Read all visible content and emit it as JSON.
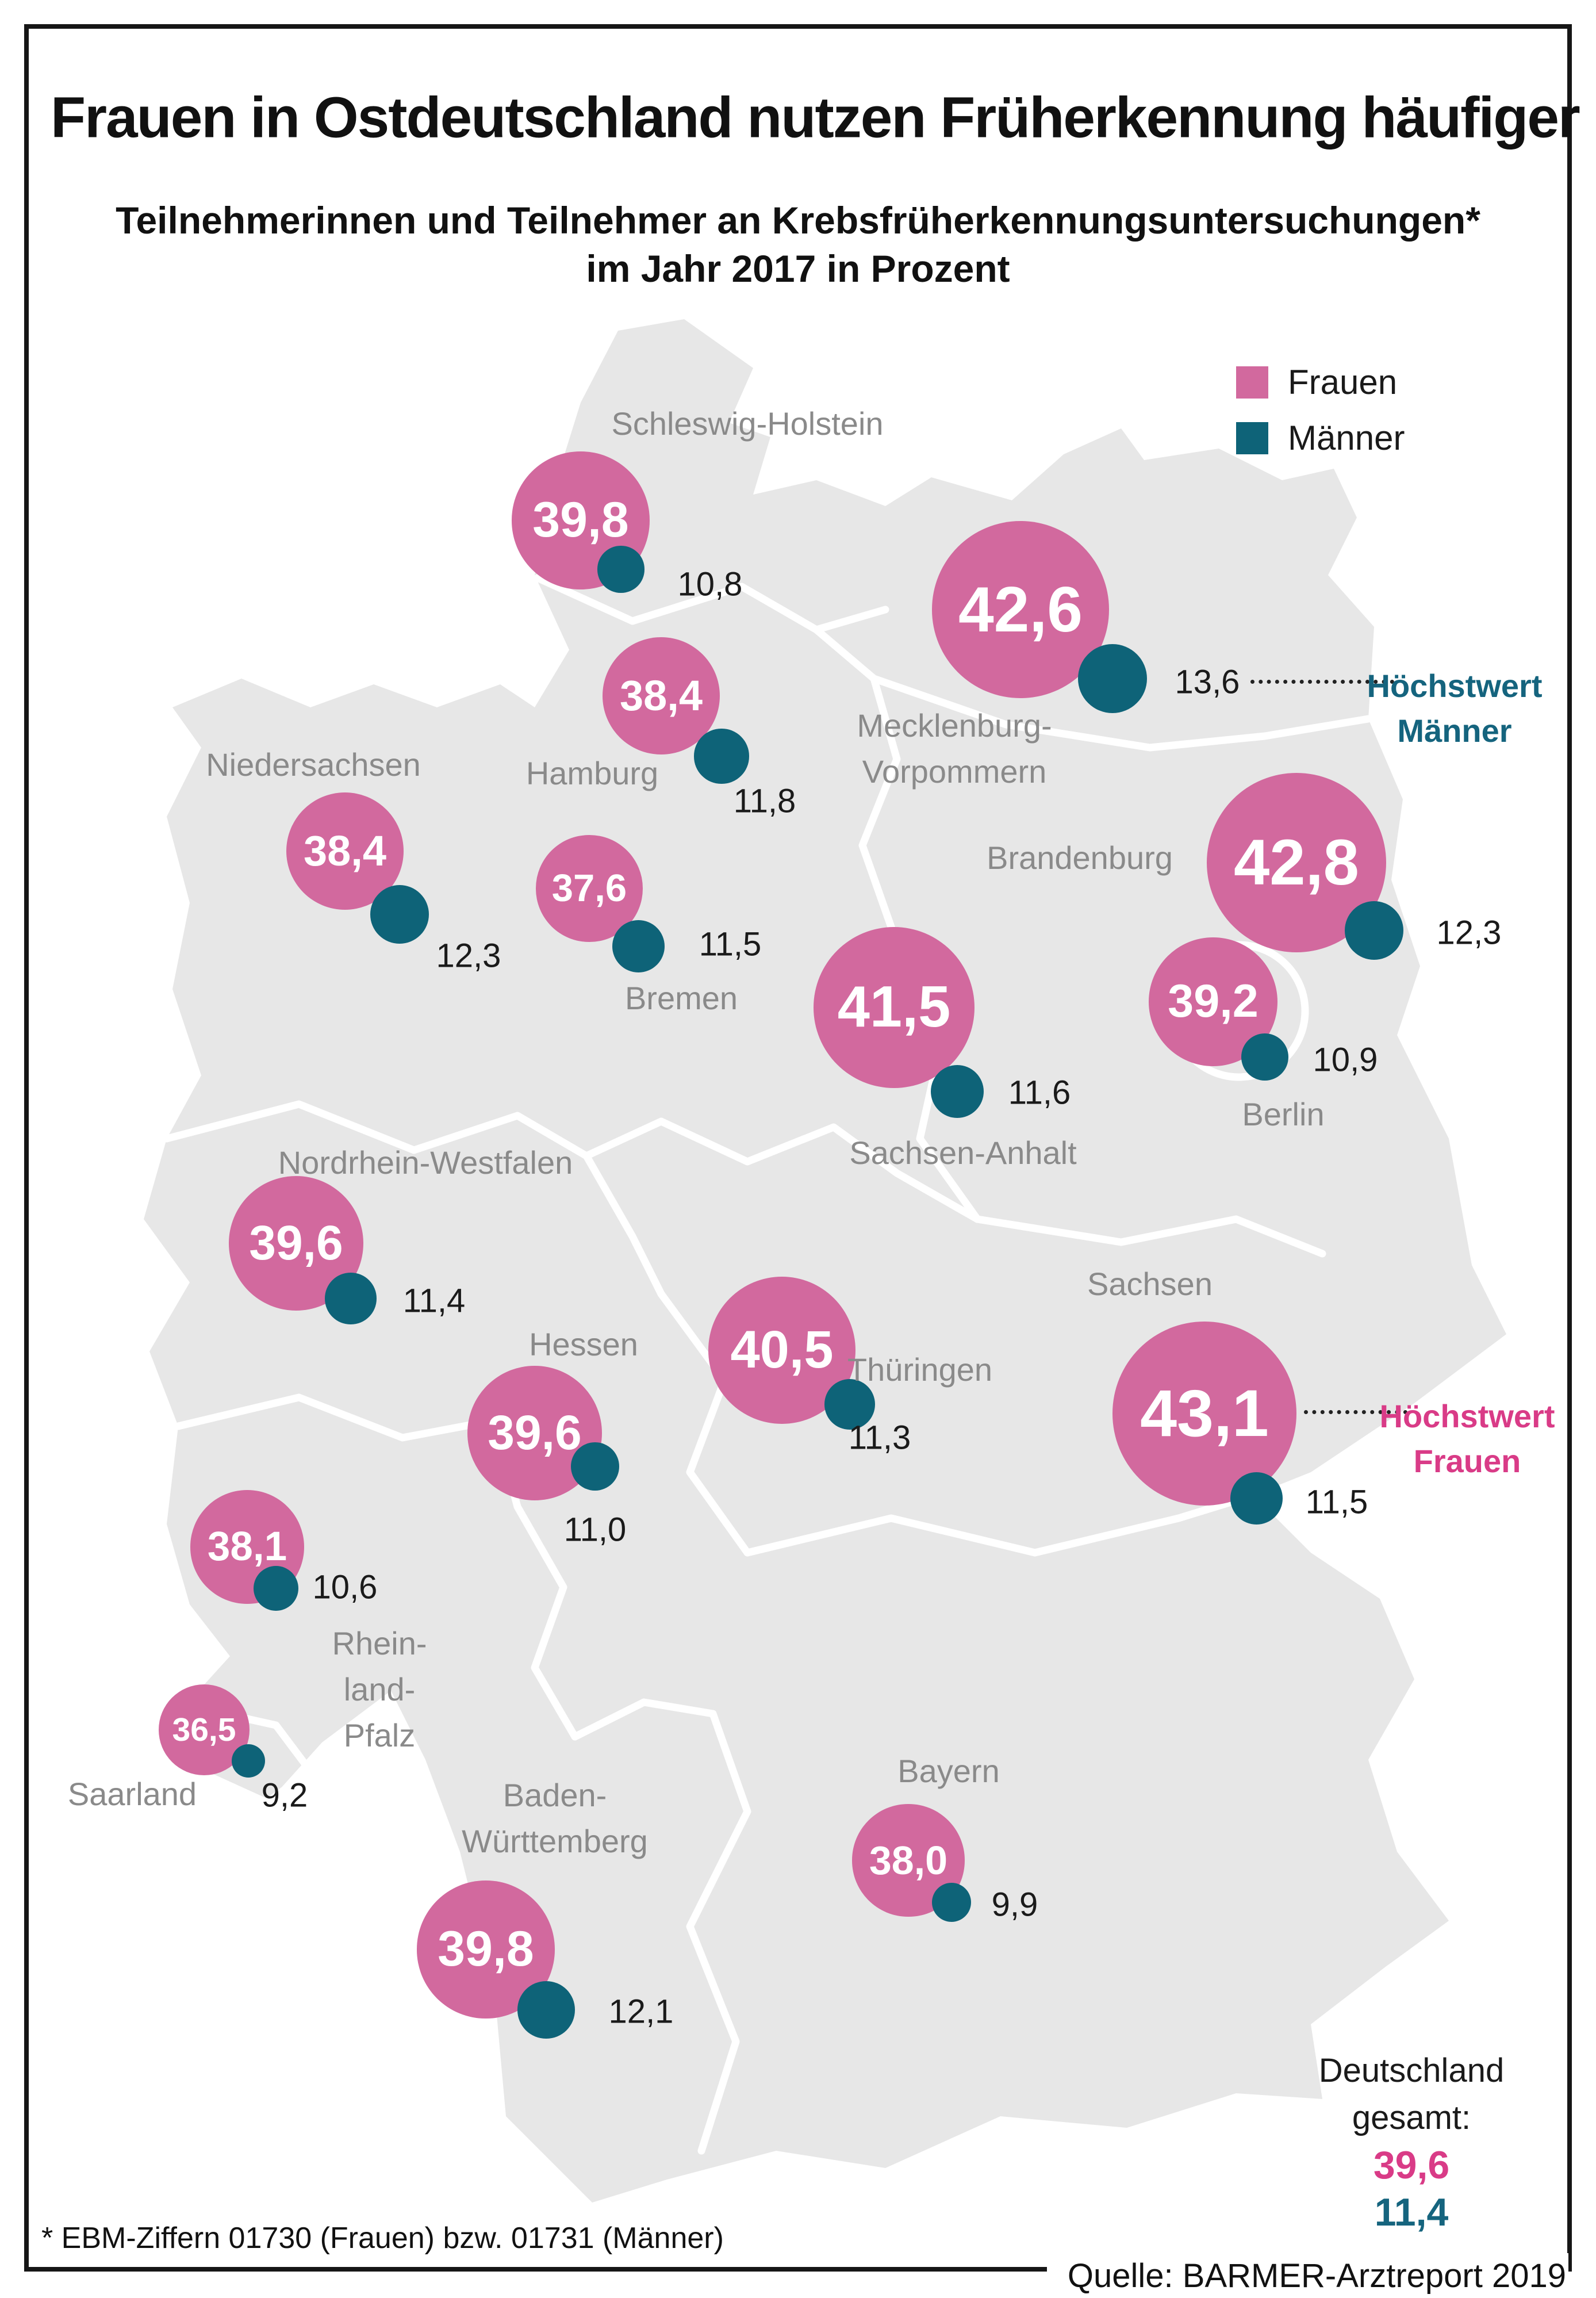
{
  "title": "Frauen in Ostdeutschland nutzen Früherkennung häufiger",
  "subtitle_line1": "Teilnehmerinnen und Teilnehmer an Krebsfrüherkennungsuntersuchungen*",
  "subtitle_line2": "im Jahr 2017 in Prozent",
  "legend": {
    "frauen_label": "Frauen",
    "maenner_label": "Männer"
  },
  "colors": {
    "frauen_bubble": "#d2699e",
    "maenner_bubble": "#0e6378",
    "frauen_accent": "#d93b87",
    "maenner_accent": "#15647e",
    "map_fill": "#e7e7e7",
    "state_label": "#8a8a8a"
  },
  "annotations": {
    "hoechstwert_maenner_line1": "Höchstwert",
    "hoechstwert_maenner_line2": "Männer",
    "hoechstwert_frauen_line1": "Höchstwert",
    "hoechstwert_frauen_line2": "Frauen"
  },
  "total": {
    "label_line1": "Deutschland",
    "label_line2": "gesamt:",
    "frauen_value": "39,6",
    "maenner_value": "11,4"
  },
  "footnote": "* EBM-Ziffern 01730 (Frauen) bzw. 01731 (Männer)",
  "source": "Quelle: BARMER-Arztreport 2019",
  "chart_data": {
    "type": "map-bubble",
    "topic": "Teilnahme an Krebsfrüherkennungsuntersuchungen 2017",
    "unit": "Prozent",
    "series": [
      "Frauen",
      "Männer"
    ],
    "highlight_max_frauen": "Sachsen",
    "highlight_max_maenner": "Mecklenburg-Vorpommern",
    "total": {
      "frauen": 39.6,
      "maenner": 11.4
    },
    "states": [
      {
        "name": "Schleswig-Holstein",
        "label_lines": [
          "Schleswig-Holstein"
        ],
        "label_pos": [
          1300,
          737
        ],
        "frauen": 39.8,
        "frauen_label": "39,8",
        "maenner": 10.8,
        "maenner_label": "10,8",
        "frauen_pos": [
          1010,
          905
        ],
        "maenner_pos": [
          1080,
          990
        ],
        "maenner_label_pos": [
          1235,
          1016
        ]
      },
      {
        "name": "Mecklenburg-Vorpommern",
        "label_lines": [
          "Mecklenburg-",
          "Vorpommern"
        ],
        "label_pos": [
          1660,
          1262
        ],
        "frauen": 42.6,
        "frauen_label": "42,6",
        "maenner": 13.6,
        "maenner_label": "13,6",
        "frauen_pos": [
          1775,
          1060
        ],
        "maenner_pos": [
          1935,
          1180
        ],
        "maenner_label_pos": [
          2100,
          1186
        ]
      },
      {
        "name": "Hamburg",
        "label_lines": [
          "Hamburg"
        ],
        "label_pos": [
          1030,
          1345
        ],
        "frauen": 38.4,
        "frauen_label": "38,4",
        "maenner": 11.8,
        "maenner_label": "11,8",
        "frauen_pos": [
          1150,
          1210
        ],
        "maenner_pos": [
          1255,
          1315
        ],
        "maenner_label_pos": [
          1330,
          1393
        ]
      },
      {
        "name": "Niedersachsen",
        "label_lines": [
          "Niedersachsen"
        ],
        "label_pos": [
          545,
          1330
        ],
        "frauen": 38.4,
        "frauen_label": "38,4",
        "maenner": 12.3,
        "maenner_label": "12,3",
        "frauen_pos": [
          600,
          1480
        ],
        "maenner_pos": [
          695,
          1590
        ],
        "maenner_label_pos": [
          815,
          1662
        ]
      },
      {
        "name": "Bremen",
        "label_lines": [
          "Bremen"
        ],
        "label_pos": [
          1185,
          1736
        ],
        "frauen": 37.6,
        "frauen_label": "37,6",
        "maenner": 11.5,
        "maenner_label": "11,5",
        "frauen_pos": [
          1025,
          1545
        ],
        "maenner_pos": [
          1110,
          1645
        ],
        "maenner_label_pos": [
          1270,
          1642
        ]
      },
      {
        "name": "Brandenburg",
        "label_lines": [
          "Brandenburg"
        ],
        "label_pos": [
          1878,
          1492
        ],
        "frauen": 42.8,
        "frauen_label": "42,8",
        "maenner": 12.3,
        "maenner_label": "12,3",
        "frauen_pos": [
          2255,
          1500
        ],
        "maenner_pos": [
          2390,
          1618
        ],
        "maenner_label_pos": [
          2555,
          1622
        ]
      },
      {
        "name": "Berlin",
        "label_lines": [
          "Berlin"
        ],
        "label_pos": [
          2232,
          1938
        ],
        "frauen": 39.2,
        "frauen_label": "39,2",
        "maenner": 10.9,
        "maenner_label": "10,9",
        "frauen_pos": [
          2110,
          1742
        ],
        "maenner_pos": [
          2200,
          1838
        ],
        "maenner_label_pos": [
          2340,
          1843
        ]
      },
      {
        "name": "Sachsen-Anhalt",
        "label_lines": [
          "Sachsen-Anhalt"
        ],
        "label_pos": [
          1675,
          2005
        ],
        "frauen": 41.5,
        "frauen_label": "41,5",
        "maenner": 11.6,
        "maenner_label": "11,6",
        "frauen_pos": [
          1555,
          1752
        ],
        "maenner_pos": [
          1665,
          1898
        ],
        "maenner_label_pos": [
          1808,
          1900
        ]
      },
      {
        "name": "Nordrhein-Westfalen",
        "label_lines": [
          "Nordrhein-Westfalen"
        ],
        "label_pos": [
          740,
          2022
        ],
        "frauen": 39.6,
        "frauen_label": "39,6",
        "maenner": 11.4,
        "maenner_label": "11,4",
        "frauen_pos": [
          515,
          2162
        ],
        "maenner_pos": [
          610,
          2258
        ],
        "maenner_label_pos": [
          755,
          2262
        ]
      },
      {
        "name": "Hessen",
        "label_lines": [
          "Hessen"
        ],
        "label_pos": [
          1015,
          2338
        ],
        "frauen": 39.6,
        "frauen_label": "39,6",
        "maenner": 11.0,
        "maenner_label": "11,0",
        "frauen_pos": [
          930,
          2492
        ],
        "maenner_pos": [
          1035,
          2550
        ],
        "maenner_label_pos": [
          1035,
          2660
        ]
      },
      {
        "name": "Thüringen",
        "label_lines": [
          "Thüringen"
        ],
        "label_pos": [
          1600,
          2382
        ],
        "frauen": 40.5,
        "frauen_label": "40,5",
        "maenner": 11.3,
        "maenner_label": "11,3",
        "frauen_pos": [
          1360,
          2348
        ],
        "maenner_pos": [
          1478,
          2442
        ],
        "maenner_label_pos": [
          1530,
          2500
        ]
      },
      {
        "name": "Sachsen",
        "label_lines": [
          "Sachsen"
        ],
        "label_pos": [
          2000,
          2233
        ],
        "frauen": 43.1,
        "frauen_label": "43,1",
        "maenner": 11.5,
        "maenner_label": "11,5",
        "frauen_pos": [
          2095,
          2458
        ],
        "maenner_pos": [
          2185,
          2605
        ],
        "maenner_label_pos": [
          2325,
          2612
        ]
      },
      {
        "name": "Rheinland-Pfalz",
        "label_lines": [
          "Rhein-",
          "land-",
          "Pfalz"
        ],
        "label_pos": [
          660,
          2858
        ],
        "frauen": 38.1,
        "frauen_label": "38,1",
        "maenner": 10.6,
        "maenner_label": "10,6",
        "frauen_pos": [
          430,
          2690
        ],
        "maenner_pos": [
          480,
          2762
        ],
        "maenner_label_pos": [
          600,
          2760
        ]
      },
      {
        "name": "Saarland",
        "label_lines": [
          "Saarland"
        ],
        "label_pos": [
          230,
          3120
        ],
        "frauen": 36.5,
        "frauen_label": "36,5",
        "maenner": 9.2,
        "maenner_label": "9,2",
        "frauen_pos": [
          355,
          3008
        ],
        "maenner_pos": [
          432,
          3062
        ],
        "maenner_label_pos": [
          495,
          3122
        ]
      },
      {
        "name": "Baden-Württemberg",
        "label_lines": [
          "Baden-",
          "Württemberg"
        ],
        "label_pos": [
          965,
          3122
        ],
        "frauen": 39.8,
        "frauen_label": "39,8",
        "maenner": 12.1,
        "maenner_label": "12,1",
        "frauen_pos": [
          845,
          3390
        ],
        "maenner_pos": [
          950,
          3495
        ],
        "maenner_label_pos": [
          1115,
          3498
        ]
      },
      {
        "name": "Bayern",
        "label_lines": [
          "Bayern"
        ],
        "label_pos": [
          1650,
          3080
        ],
        "frauen": 38.0,
        "frauen_label": "38,0",
        "maenner": 9.9,
        "maenner_label": "9,9",
        "frauen_pos": [
          1580,
          3235
        ],
        "maenner_pos": [
          1655,
          3308
        ],
        "maenner_label_pos": [
          1765,
          3312
        ]
      }
    ]
  }
}
